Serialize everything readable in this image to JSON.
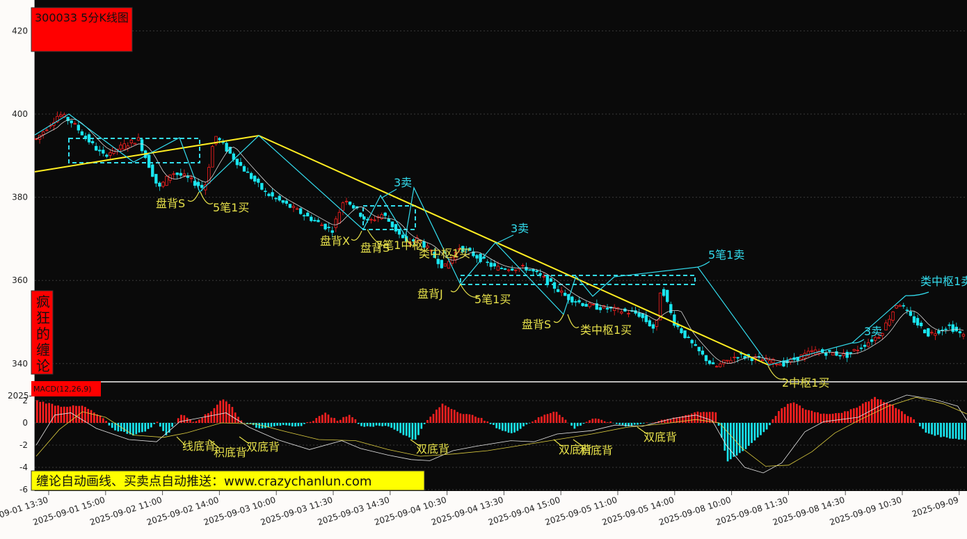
{
  "title": "300033 5分K线图",
  "side_label": "疯狂的缠论",
  "macd_label": "MACD(12,26,9)",
  "footer_text": "缠论自动画线、买卖点自动推送：www.crazychanlun.com",
  "colors": {
    "up": "#ff2020",
    "down": "#19e6f0",
    "bi": "#33ddee",
    "segment": "#ffee22",
    "zhongshu": "#33ddee",
    "ann_yellow": "#e6e04a",
    "ann_cyan": "#33ddee",
    "ma": "#d9d9d9",
    "dea": "#e0d040"
  },
  "chart_data": [
    {
      "type": "candlestick",
      "title": "300033 5分K线图",
      "ylim": [
        335,
        427
      ],
      "yticks": [
        340,
        360,
        380,
        400,
        420
      ],
      "xticks": [
        "2025-09-01 13:30",
        "2025-09-01 15:00",
        "2025-09-02 11:00",
        "2025-09-02 14:00",
        "2025-09-03 10:00",
        "2025-09-03 11:30",
        "2025-09-03 14:30",
        "2025-09-04 10:30",
        "2025-09-04 13:30",
        "2025-09-04 15:00",
        "2025-09-05 11:00",
        "2025-09-05 14:00",
        "2025-09-08 10:00",
        "2025-09-08 11:30",
        "2025-09-08 14:30",
        "2025-09-09 10:30",
        "2025-09-09"
      ],
      "bars_count": 264,
      "price_path": [
        [
          0,
          394
        ],
        [
          9,
          400
        ],
        [
          14,
          398
        ],
        [
          26,
          390
        ],
        [
          40,
          394
        ],
        [
          48,
          382
        ],
        [
          53,
          386
        ],
        [
          58,
          385
        ],
        [
          66,
          382
        ],
        [
          70,
          395
        ],
        [
          78,
          389
        ],
        [
          90,
          381
        ],
        [
          116,
          372
        ],
        [
          121,
          380
        ],
        [
          130,
          374
        ],
        [
          136,
          376
        ],
        [
          145,
          369
        ],
        [
          150,
          370
        ],
        [
          160,
          363
        ],
        [
          166,
          368
        ],
        [
          172,
          366
        ],
        [
          180,
          363
        ],
        [
          192,
          363
        ],
        [
          198,
          361
        ],
        [
          208,
          356
        ],
        [
          216,
          354
        ],
        [
          236,
          352
        ],
        [
          243,
          348
        ],
        [
          245,
          359
        ],
        [
          250,
          350
        ],
        [
          258,
          344
        ],
        [
          266,
          339
        ],
        [
          275,
          342
        ],
        [
          293,
          340
        ],
        [
          305,
          343
        ],
        [
          318,
          342
        ],
        [
          331,
          347
        ],
        [
          338,
          355
        ],
        [
          343,
          351
        ],
        [
          350,
          347
        ],
        [
          358,
          349
        ],
        [
          365,
          346
        ]
      ],
      "bi_lines": [
        [
          [
            50,
            194
          ],
          [
            99,
            164
          ],
          [
            146,
            199
          ],
          [
            192,
            233
          ],
          [
            258,
            198
          ],
          [
            287,
            276
          ],
          [
            372,
            195
          ],
          [
            522,
            330
          ],
          [
            547,
            281
          ],
          [
            583,
            340
          ],
          [
            595,
            270
          ],
          [
            662,
            409
          ],
          [
            712,
            349
          ],
          [
            810,
            452
          ],
          [
            828,
            397
          ],
          [
            852,
            426
          ],
          [
            883,
            398
          ],
          [
            1003,
            384
          ],
          [
            1105,
            525
          ],
          [
            1225,
            493
          ],
          [
            1302,
            425
          ]
        ]
      ],
      "segment_line": [
        [
          50,
          247
        ],
        [
          372,
          195
        ],
        [
          1105,
          525
        ]
      ],
      "zhongshu_boxes": [
        [
          99,
          199,
          287,
          234
        ],
        [
          522,
          296,
          597,
          330
        ],
        [
          662,
          396,
          999,
          409
        ]
      ],
      "annotations": [
        {
          "text": "盘背S",
          "color": "yellow"
        },
        {
          "text": "5笔1买",
          "color": "yellow"
        },
        {
          "text": "3卖",
          "color": "cyan"
        },
        {
          "text": "盘背X",
          "color": "yellow"
        },
        {
          "text": "盘背S",
          "color": "yellow"
        },
        {
          "text": "7笔1中枢",
          "color": "yellow"
        },
        {
          "text": "类中枢1买",
          "color": "yellow"
        },
        {
          "text": "3卖",
          "color": "cyan"
        },
        {
          "text": "盘背J",
          "color": "yellow"
        },
        {
          "text": "5笔1买",
          "color": "yellow"
        },
        {
          "text": "盘背S",
          "color": "yellow"
        },
        {
          "text": "类中枢1买",
          "color": "yellow"
        },
        {
          "text": "5笔1卖",
          "color": "cyan"
        },
        {
          "text": "2中枢1买",
          "color": "yellow"
        },
        {
          "text": "3卖",
          "color": "cyan"
        },
        {
          "text": "类中枢1卖",
          "color": "cyan"
        }
      ]
    },
    {
      "type": "bar",
      "title": "MACD(12,26,9)",
      "ylim": [
        -6,
        3
      ],
      "yticks": [
        -6,
        -4,
        -2,
        0,
        2
      ],
      "histogram_path": [
        [
          0,
          2.0
        ],
        [
          10,
          1.5
        ],
        [
          20,
          1.5
        ],
        [
          28,
          0.5
        ],
        [
          33,
          -0.6
        ],
        [
          42,
          -1.1
        ],
        [
          48,
          -0.6
        ],
        [
          52,
          0.1
        ],
        [
          56,
          -1.2
        ],
        [
          62,
          0.8
        ],
        [
          68,
          0.1
        ],
        [
          75,
          1.0
        ],
        [
          80,
          2.2
        ],
        [
          84,
          1.5
        ],
        [
          88,
          0.2
        ],
        [
          96,
          -0.5
        ],
        [
          104,
          -0.2
        ],
        [
          112,
          -0.4
        ],
        [
          120,
          0.3
        ],
        [
          124,
          0.9
        ],
        [
          130,
          0.2
        ],
        [
          135,
          0.8
        ],
        [
          140,
          -0.3
        ],
        [
          152,
          -0.3
        ],
        [
          163,
          -1.6
        ],
        [
          168,
          0.1
        ],
        [
          175,
          1.7
        ],
        [
          184,
          0.8
        ],
        [
          190,
          0.6
        ],
        [
          200,
          -0.6
        ],
        [
          205,
          -1.0
        ],
        [
          210,
          -0.3
        ],
        [
          218,
          0.6
        ],
        [
          224,
          1.1
        ],
        [
          232,
          -0.5
        ],
        [
          240,
          0.4
        ],
        [
          255,
          -0.3
        ],
        [
          275,
          0.4
        ],
        [
          285,
          1.0
        ],
        [
          293,
          1.0
        ],
        [
          298,
          -3.5
        ],
        [
          305,
          -2.5
        ],
        [
          315,
          -0.6
        ],
        [
          320,
          1.0
        ],
        [
          326,
          1.9
        ],
        [
          332,
          1.2
        ],
        [
          340,
          0.8
        ],
        [
          350,
          1.0
        ],
        [
          362,
          2.3
        ],
        [
          370,
          1.5
        ],
        [
          378,
          0.4
        ],
        [
          384,
          -0.9
        ],
        [
          392,
          -1.3
        ],
        [
          400,
          -1.5
        ]
      ],
      "dif_path": [
        [
          0,
          -2.0
        ],
        [
          8,
          0.7
        ],
        [
          15,
          0.9
        ],
        [
          26,
          -0.5
        ],
        [
          40,
          -1.5
        ],
        [
          52,
          -1.7
        ],
        [
          62,
          0.1
        ],
        [
          72,
          0.5
        ],
        [
          82,
          0.9
        ],
        [
          92,
          -0.4
        ],
        [
          104,
          -1.5
        ],
        [
          118,
          -2.4
        ],
        [
          132,
          -1.6
        ],
        [
          140,
          -2.3
        ],
        [
          152,
          -2.9
        ],
        [
          162,
          -3.3
        ],
        [
          170,
          -3.4
        ],
        [
          180,
          -2.5
        ],
        [
          190,
          -2.1
        ],
        [
          205,
          -1.6
        ],
        [
          215,
          -1.7
        ],
        [
          225,
          -1.0
        ],
        [
          240,
          -0.7
        ],
        [
          250,
          -0.2
        ],
        [
          262,
          -0.3
        ],
        [
          275,
          0.4
        ],
        [
          285,
          0.7
        ],
        [
          292,
          0.2
        ],
        [
          298,
          -2.0
        ],
        [
          306,
          -4.0
        ],
        [
          314,
          -4.5
        ],
        [
          322,
          -3.6
        ],
        [
          332,
          -0.8
        ],
        [
          340,
          0.1
        ],
        [
          355,
          0.5
        ],
        [
          365,
          1.6
        ],
        [
          376,
          2.5
        ],
        [
          388,
          2.1
        ],
        [
          398,
          1.5
        ],
        [
          402,
          0.2
        ]
      ],
      "dea_path": [
        [
          0,
          -3.0
        ],
        [
          10,
          -0.6
        ],
        [
          20,
          1.0
        ],
        [
          30,
          0.5
        ],
        [
          42,
          -1.1
        ],
        [
          55,
          -1.3
        ],
        [
          65,
          -0.9
        ],
        [
          80,
          0.0
        ],
        [
          95,
          -0.1
        ],
        [
          108,
          -0.8
        ],
        [
          122,
          -1.5
        ],
        [
          138,
          -1.6
        ],
        [
          152,
          -2.4
        ],
        [
          166,
          -3.0
        ],
        [
          180,
          -2.8
        ],
        [
          195,
          -2.5
        ],
        [
          210,
          -2.0
        ],
        [
          225,
          -1.5
        ],
        [
          240,
          -1.0
        ],
        [
          255,
          -0.4
        ],
        [
          270,
          -0.1
        ],
        [
          285,
          0.3
        ],
        [
          295,
          0.0
        ],
        [
          305,
          -2.3
        ],
        [
          315,
          -3.9
        ],
        [
          325,
          -3.8
        ],
        [
          335,
          -2.6
        ],
        [
          345,
          -0.9
        ],
        [
          355,
          0.2
        ],
        [
          368,
          1.5
        ],
        [
          380,
          2.3
        ],
        [
          392,
          1.7
        ],
        [
          402,
          0.8
        ]
      ],
      "divergence_labels": [
        "线底背",
        "积底背",
        "双底背",
        "双底背",
        "双底背",
        "积底背",
        "双底背"
      ]
    }
  ]
}
